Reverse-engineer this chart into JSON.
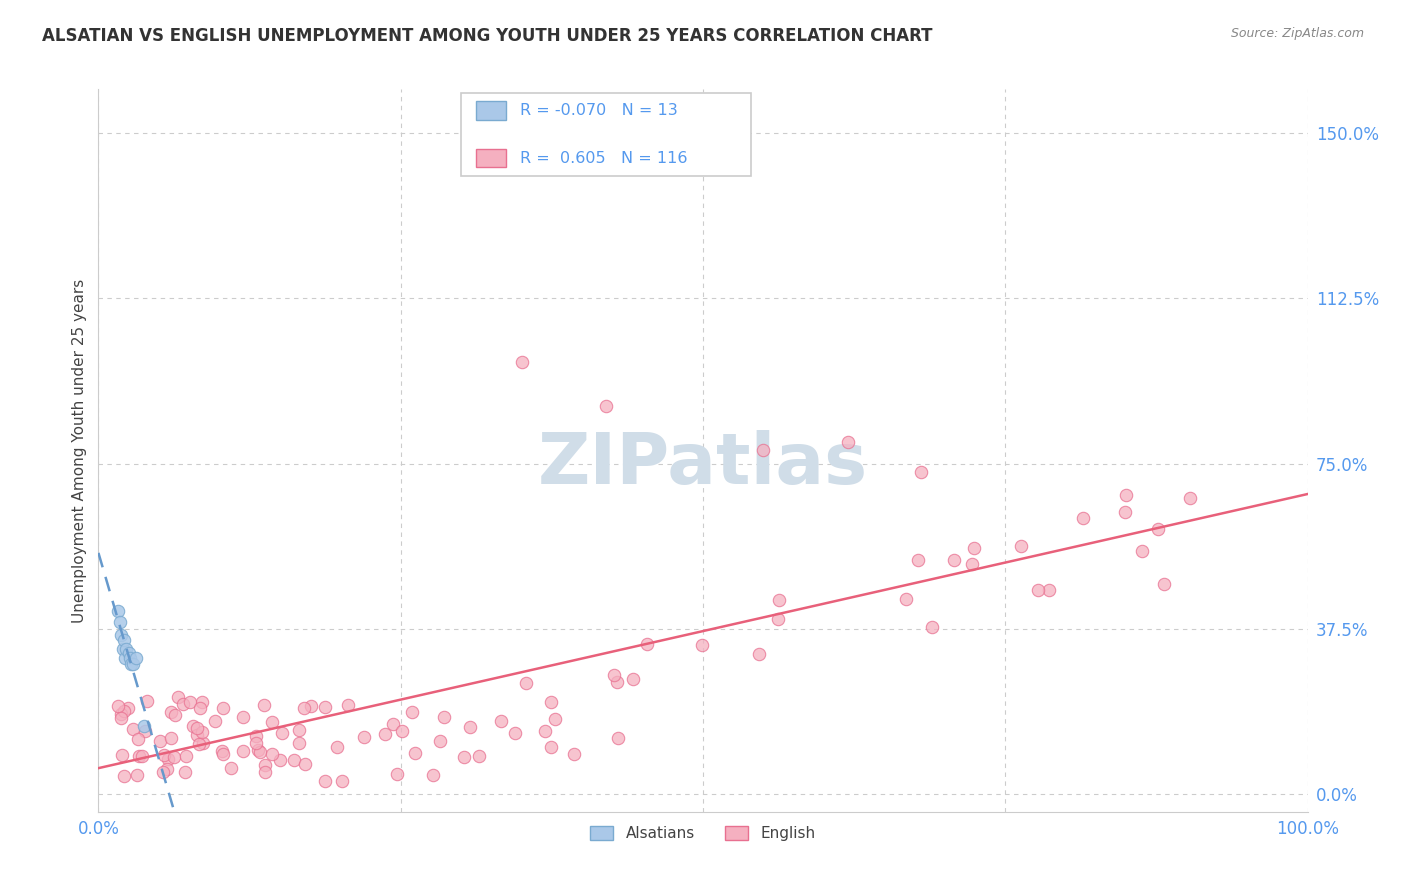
{
  "title": "ALSATIAN VS ENGLISH UNEMPLOYMENT AMONG YOUTH UNDER 25 YEARS CORRELATION CHART",
  "source": "Source: ZipAtlas.com",
  "ylabel": "Unemployment Among Youth under 25 years",
  "xlim": [
    0.0,
    1.0
  ],
  "ylim": [
    -0.04,
    1.6
  ],
  "yticks": [
    0.0,
    0.375,
    0.75,
    1.125,
    1.5
  ],
  "ytick_labels": [
    "0.0%",
    "37.5%",
    "75.0%",
    "112.5%",
    "150.0%"
  ],
  "xticks": [
    0.0,
    0.25,
    0.5,
    0.75,
    1.0
  ],
  "xtick_labels": [
    "0.0%",
    "",
    "",
    "",
    "100.0%"
  ],
  "legend_r_alsatian": "-0.070",
  "legend_n_alsatian": "13",
  "legend_r_english": "0.605",
  "legend_n_english": "116",
  "alsatian_fill": "#aac8e8",
  "alsatian_edge": "#7aaad0",
  "english_fill": "#f5b0c0",
  "english_edge": "#e87090",
  "trendline_alsatian_color": "#6699cc",
  "trendline_english_color": "#e8607a",
  "background_color": "#ffffff",
  "grid_color": "#cccccc",
  "tick_color": "#5599ee",
  "title_color": "#333333",
  "source_color": "#888888",
  "ylabel_color": "#444444",
  "watermark_color": "#d0dde8",
  "legend_border_color": "#cccccc"
}
